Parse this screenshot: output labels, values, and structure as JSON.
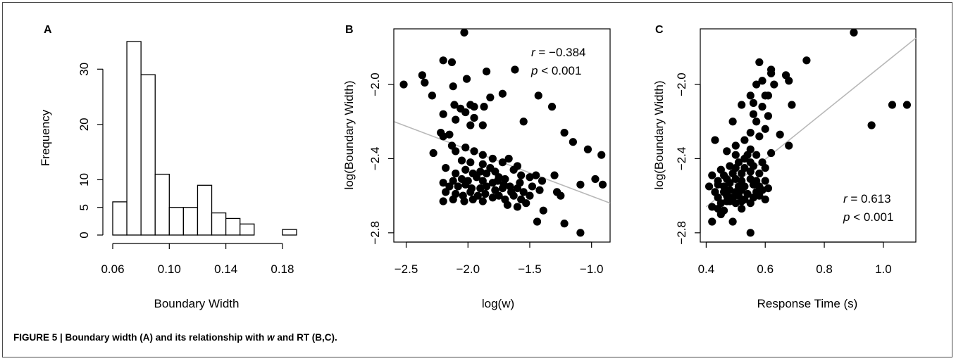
{
  "caption": {
    "prefix": "FIGURE 5 | Boundary width (A) and its relationship with ",
    "w": "w",
    "suffix": " and RT (B,C)."
  },
  "colors": {
    "points": "#000000",
    "fit_line": "#b8b8b8",
    "bars_fill": "#ffffff",
    "axis": "#000000"
  },
  "chart_data": [
    {
      "panel": "A",
      "type": "bar",
      "xlabel": "Boundary Width",
      "ylabel": "Frequency",
      "xlim": [
        0.06,
        0.19
      ],
      "ylim": [
        0,
        35
      ],
      "x_ticks": [
        "0.06",
        "0.10",
        "0.14",
        "0.18"
      ],
      "y_ticks": [
        "0",
        "5",
        "10",
        "20",
        "30"
      ],
      "bins": [
        {
          "from": 0.06,
          "to": 0.07,
          "count": 6
        },
        {
          "from": 0.07,
          "to": 0.08,
          "count": 35
        },
        {
          "from": 0.08,
          "to": 0.09,
          "count": 29
        },
        {
          "from": 0.09,
          "to": 0.1,
          "count": 11
        },
        {
          "from": 0.1,
          "to": 0.11,
          "count": 5
        },
        {
          "from": 0.11,
          "to": 0.12,
          "count": 5
        },
        {
          "from": 0.12,
          "to": 0.13,
          "count": 9
        },
        {
          "from": 0.13,
          "to": 0.14,
          "count": 4
        },
        {
          "from": 0.14,
          "to": 0.15,
          "count": 3
        },
        {
          "from": 0.15,
          "to": 0.16,
          "count": 2
        },
        {
          "from": 0.16,
          "to": 0.17,
          "count": 0
        },
        {
          "from": 0.17,
          "to": 0.18,
          "count": 0
        },
        {
          "from": 0.18,
          "to": 0.19,
          "count": 1
        }
      ]
    },
    {
      "panel": "B",
      "type": "scatter",
      "xlabel": "log(w)",
      "ylabel": "log(Boundary Width)",
      "xlim": [
        -2.6,
        -0.85
      ],
      "ylim": [
        -2.85,
        -1.7
      ],
      "x_ticks": [
        "-2.5",
        "-2.0",
        "-1.5",
        "-1.0"
      ],
      "y_ticks": [
        "-2.8",
        "-2.4",
        "-2.0"
      ],
      "stat_r": "−0.384",
      "stat_p": "< 0.001",
      "fit_line": {
        "x": [
          -2.6,
          -0.85
        ],
        "y": [
          -2.2,
          -2.64
        ]
      },
      "points": [
        [
          -2.03,
          -1.72
        ],
        [
          -2.52,
          -2.0
        ],
        [
          -2.37,
          -1.95
        ],
        [
          -2.35,
          -1.99
        ],
        [
          -2.29,
          -2.06
        ],
        [
          -2.2,
          -1.87
        ],
        [
          -2.13,
          -1.88
        ],
        [
          -2.01,
          -1.97
        ],
        [
          -2.12,
          -2.01
        ],
        [
          -1.85,
          -1.93
        ],
        [
          -1.72,
          -2.05
        ],
        [
          -1.62,
          -1.92
        ],
        [
          -1.43,
          -2.06
        ],
        [
          -1.32,
          -2.12
        ],
        [
          -2.11,
          -2.11
        ],
        [
          -2.06,
          -2.13
        ],
        [
          -1.98,
          -2.11
        ],
        [
          -1.95,
          -2.12
        ],
        [
          -1.87,
          -2.12
        ],
        [
          -1.82,
          -2.07
        ],
        [
          -2.2,
          -2.16
        ],
        [
          -2.1,
          -2.19
        ],
        [
          -2.02,
          -2.15
        ],
        [
          -1.95,
          -2.18
        ],
        [
          -2.22,
          -2.26
        ],
        [
          -2.15,
          -2.27
        ],
        [
          -1.98,
          -2.22
        ],
        [
          -1.88,
          -2.22
        ],
        [
          -1.55,
          -2.2
        ],
        [
          -1.22,
          -2.26
        ],
        [
          -1.15,
          -2.31
        ],
        [
          -1.03,
          -2.35
        ],
        [
          -0.92,
          -2.38
        ],
        [
          -2.2,
          -2.28
        ],
        [
          -2.13,
          -2.33
        ],
        [
          -2.1,
          -2.36
        ],
        [
          -2.02,
          -2.34
        ],
        [
          -1.95,
          -2.36
        ],
        [
          -2.28,
          -2.37
        ],
        [
          -1.88,
          -2.38
        ],
        [
          -1.8,
          -2.4
        ],
        [
          -1.72,
          -2.42
        ],
        [
          -1.67,
          -2.4
        ],
        [
          -1.6,
          -2.44
        ],
        [
          -2.05,
          -2.41
        ],
        [
          -1.98,
          -2.42
        ],
        [
          -1.88,
          -2.43
        ],
        [
          -1.82,
          -2.45
        ],
        [
          -1.78,
          -2.47
        ],
        [
          -2.18,
          -2.45
        ],
        [
          -2.1,
          -2.48
        ],
        [
          -2.02,
          -2.46
        ],
        [
          -1.96,
          -2.48
        ],
        [
          -1.9,
          -2.47
        ],
        [
          -1.85,
          -2.48
        ],
        [
          -1.75,
          -2.5
        ],
        [
          -1.7,
          -2.51
        ],
        [
          -1.63,
          -2.46
        ],
        [
          -1.57,
          -2.49
        ],
        [
          -1.5,
          -2.5
        ],
        [
          -1.45,
          -2.49
        ],
        [
          -1.4,
          -2.52
        ],
        [
          -2.12,
          -2.52
        ],
        [
          -2.05,
          -2.51
        ],
        [
          -2.0,
          -2.52
        ],
        [
          -1.93,
          -2.5
        ],
        [
          -1.88,
          -2.52
        ],
        [
          -1.8,
          -2.53
        ],
        [
          -1.76,
          -2.52
        ],
        [
          -1.71,
          -2.54
        ],
        [
          -1.66,
          -2.55
        ],
        [
          -1.58,
          -2.53
        ],
        [
          -2.2,
          -2.53
        ],
        [
          -2.15,
          -2.55
        ],
        [
          -2.08,
          -2.55
        ],
        [
          -2.02,
          -2.54
        ],
        [
          -1.97,
          -2.56
        ],
        [
          -1.9,
          -2.56
        ],
        [
          -1.85,
          -2.55
        ],
        [
          -1.78,
          -2.57
        ],
        [
          -1.72,
          -2.56
        ],
        [
          -1.65,
          -2.58
        ],
        [
          -1.6,
          -2.56
        ],
        [
          -1.55,
          -2.58
        ],
        [
          -1.48,
          -2.55
        ],
        [
          -1.42,
          -2.57
        ],
        [
          -2.18,
          -2.58
        ],
        [
          -2.1,
          -2.59
        ],
        [
          -2.04,
          -2.6
        ],
        [
          -1.98,
          -2.58
        ],
        [
          -1.92,
          -2.6
        ],
        [
          -1.86,
          -2.59
        ],
        [
          -1.8,
          -2.61
        ],
        [
          -1.75,
          -2.6
        ],
        [
          -1.7,
          -2.62
        ],
        [
          -1.63,
          -2.6
        ],
        [
          -1.57,
          -2.62
        ],
        [
          -1.5,
          -2.6
        ],
        [
          -2.2,
          -2.63
        ],
        [
          -2.12,
          -2.62
        ],
        [
          -2.03,
          -2.63
        ],
        [
          -1.96,
          -2.62
        ],
        [
          -1.88,
          -2.63
        ],
        [
          -1.68,
          -2.65
        ],
        [
          -1.6,
          -2.66
        ],
        [
          -1.53,
          -2.64
        ],
        [
          -1.28,
          -2.58
        ],
        [
          -1.25,
          -2.6
        ],
        [
          -1.39,
          -2.68
        ],
        [
          -1.44,
          -2.74
        ],
        [
          -1.22,
          -2.75
        ],
        [
          -1.09,
          -2.8
        ],
        [
          -1.09,
          -2.54
        ],
        [
          -0.97,
          -2.51
        ],
        [
          -0.91,
          -2.54
        ],
        [
          -1.3,
          -2.49
        ]
      ]
    },
    {
      "panel": "C",
      "type": "scatter",
      "xlabel": "Response Time (s)",
      "ylabel": "log(Boundary Width)",
      "xlim": [
        0.38,
        1.11
      ],
      "ylim": [
        -2.85,
        -1.7
      ],
      "x_ticks": [
        "0.4",
        "0.6",
        "0.8",
        "1.0"
      ],
      "y_ticks": [
        "-2.8",
        "-2.4",
        "-2.0"
      ],
      "stat_r": "0.613",
      "stat_p": "< 0.001",
      "fit_line": {
        "x": [
          0.4,
          1.11
        ],
        "y": [
          -2.66,
          -1.75
        ]
      },
      "points": [
        [
          0.9,
          -1.72
        ],
        [
          0.74,
          -1.87
        ],
        [
          0.58,
          -1.88
        ],
        [
          0.62,
          -1.92
        ],
        [
          0.62,
          -1.94
        ],
        [
          0.67,
          -1.95
        ],
        [
          0.59,
          -1.98
        ],
        [
          0.57,
          -2.0
        ],
        [
          0.63,
          -2.0
        ],
        [
          0.68,
          -1.98
        ],
        [
          0.55,
          -2.06
        ],
        [
          0.6,
          -2.06
        ],
        [
          0.61,
          -2.06
        ],
        [
          0.59,
          -2.12
        ],
        [
          0.56,
          -2.1
        ],
        [
          0.69,
          -2.11
        ],
        [
          0.52,
          -2.11
        ],
        [
          0.56,
          -2.16
        ],
        [
          0.61,
          -2.17
        ],
        [
          0.57,
          -2.2
        ],
        [
          0.49,
          -2.2
        ],
        [
          0.6,
          -2.24
        ],
        [
          0.55,
          -2.26
        ],
        [
          0.58,
          -2.28
        ],
        [
          0.53,
          -2.3
        ],
        [
          0.5,
          -2.33
        ],
        [
          0.55,
          -2.35
        ],
        [
          0.43,
          -2.3
        ],
        [
          0.65,
          -2.27
        ],
        [
          0.62,
          -2.37
        ],
        [
          0.47,
          -2.36
        ],
        [
          0.5,
          -2.38
        ],
        [
          0.53,
          -2.4
        ],
        [
          0.57,
          -2.38
        ],
        [
          0.59,
          -2.42
        ],
        [
          0.55,
          -2.42
        ],
        [
          0.51,
          -2.42
        ],
        [
          0.48,
          -2.44
        ],
        [
          0.45,
          -2.46
        ],
        [
          0.5,
          -2.45
        ],
        [
          0.53,
          -2.45
        ],
        [
          0.56,
          -2.44
        ],
        [
          0.6,
          -2.45
        ],
        [
          0.42,
          -2.49
        ],
        [
          0.46,
          -2.49
        ],
        [
          0.49,
          -2.48
        ],
        [
          0.52,
          -2.48
        ],
        [
          0.55,
          -2.47
        ],
        [
          0.58,
          -2.48
        ],
        [
          0.44,
          -2.52
        ],
        [
          0.47,
          -2.51
        ],
        [
          0.5,
          -2.51
        ],
        [
          0.52,
          -2.52
        ],
        [
          0.55,
          -2.51
        ],
        [
          0.57,
          -2.52
        ],
        [
          0.6,
          -2.52
        ],
        [
          0.41,
          -2.55
        ],
        [
          0.44,
          -2.54
        ],
        [
          0.46,
          -2.55
        ],
        [
          0.48,
          -2.53
        ],
        [
          0.51,
          -2.55
        ],
        [
          0.53,
          -2.55
        ],
        [
          0.56,
          -2.54
        ],
        [
          0.58,
          -2.55
        ],
        [
          0.43,
          -2.58
        ],
        [
          0.46,
          -2.58
        ],
        [
          0.48,
          -2.57
        ],
        [
          0.5,
          -2.58
        ],
        [
          0.52,
          -2.57
        ],
        [
          0.54,
          -2.59
        ],
        [
          0.57,
          -2.58
        ],
        [
          0.59,
          -2.57
        ],
        [
          0.44,
          -2.61
        ],
        [
          0.47,
          -2.6
        ],
        [
          0.49,
          -2.61
        ],
        [
          0.51,
          -2.6
        ],
        [
          0.53,
          -2.62
        ],
        [
          0.56,
          -2.61
        ],
        [
          0.58,
          -2.6
        ],
        [
          0.6,
          -2.62
        ],
        [
          0.45,
          -2.64
        ],
        [
          0.48,
          -2.63
        ],
        [
          0.5,
          -2.64
        ],
        [
          0.52,
          -2.63
        ],
        [
          0.55,
          -2.64
        ],
        [
          0.42,
          -2.66
        ],
        [
          0.44,
          -2.67
        ],
        [
          0.46,
          -2.68
        ],
        [
          0.52,
          -2.67
        ],
        [
          0.45,
          -2.7
        ],
        [
          0.42,
          -2.74
        ],
        [
          0.49,
          -2.74
        ],
        [
          0.55,
          -2.8
        ],
        [
          0.68,
          -2.33
        ],
        [
          0.96,
          -2.22
        ],
        [
          1.03,
          -2.11
        ],
        [
          1.08,
          -2.11
        ],
        [
          0.54,
          -2.38
        ],
        [
          0.61,
          -2.56
        ],
        [
          0.47,
          -2.63
        ]
      ]
    }
  ]
}
